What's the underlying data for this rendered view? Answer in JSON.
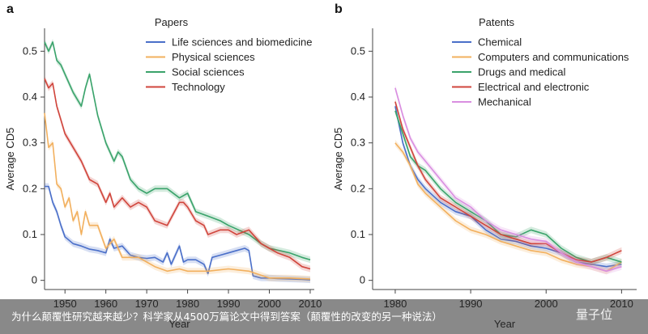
{
  "chart_data": [
    {
      "type": "line",
      "panel": "a",
      "title": "Papers",
      "xlabel": "Year",
      "ylabel": "Average CD5",
      "xlim": [
        1945,
        2011
      ],
      "ylim": [
        -0.02,
        0.55
      ],
      "xticks": [
        1950,
        1960,
        1970,
        1980,
        1990,
        2000,
        2010
      ],
      "yticks": [
        0,
        0.1,
        0.2,
        0.3,
        0.4,
        0.5
      ],
      "legend_position": "top-right",
      "series": [
        {
          "name": "Life sciences and biomedicine",
          "color": "#4a6fc9",
          "x": [
            1945,
            1946,
            1947,
            1948,
            1949,
            1950,
            1952,
            1954,
            1956,
            1958,
            1960,
            1961,
            1962,
            1964,
            1966,
            1968,
            1970,
            1972,
            1974,
            1975,
            1976,
            1978,
            1979,
            1980,
            1982,
            1984,
            1985,
            1986,
            1988,
            1990,
            1992,
            1994,
            1995,
            1996,
            1998,
            2000,
            2002,
            2005,
            2008,
            2010
          ],
          "y": [
            0.205,
            0.205,
            0.17,
            0.15,
            0.12,
            0.095,
            0.08,
            0.075,
            0.068,
            0.065,
            0.06,
            0.09,
            0.07,
            0.075,
            0.055,
            0.05,
            0.048,
            0.05,
            0.04,
            0.06,
            0.035,
            0.075,
            0.04,
            0.045,
            0.045,
            0.035,
            0.015,
            0.05,
            0.055,
            0.06,
            0.065,
            0.07,
            0.065,
            0.01,
            0.005,
            0.005,
            0.004,
            0.003,
            0.002,
            0.001
          ]
        },
        {
          "name": "Physical sciences",
          "color": "#f2b05e",
          "x": [
            1945,
            1946,
            1947,
            1948,
            1949,
            1950,
            1951,
            1952,
            1953,
            1954,
            1955,
            1956,
            1958,
            1960,
            1962,
            1964,
            1966,
            1968,
            1970,
            1972,
            1975,
            1978,
            1980,
            1985,
            1990,
            1995,
            2000,
            2005,
            2010
          ],
          "y": [
            0.365,
            0.29,
            0.3,
            0.21,
            0.2,
            0.16,
            0.18,
            0.13,
            0.15,
            0.1,
            0.15,
            0.12,
            0.12,
            0.07,
            0.09,
            0.05,
            0.05,
            0.05,
            0.04,
            0.03,
            0.02,
            0.025,
            0.02,
            0.02,
            0.025,
            0.02,
            0.005,
            0.005,
            0.003
          ]
        },
        {
          "name": "Social sciences",
          "color": "#3aa36b",
          "x": [
            1945,
            1946,
            1947,
            1948,
            1949,
            1950,
            1952,
            1954,
            1955,
            1956,
            1958,
            1960,
            1962,
            1963,
            1964,
            1966,
            1968,
            1970,
            1972,
            1975,
            1978,
            1980,
            1982,
            1985,
            1988,
            1990,
            1995,
            1998,
            2000,
            2005,
            2008,
            2010
          ],
          "y": [
            0.52,
            0.5,
            0.52,
            0.48,
            0.47,
            0.45,
            0.41,
            0.38,
            0.42,
            0.45,
            0.36,
            0.3,
            0.26,
            0.28,
            0.27,
            0.22,
            0.2,
            0.19,
            0.2,
            0.2,
            0.18,
            0.19,
            0.15,
            0.14,
            0.13,
            0.12,
            0.1,
            0.08,
            0.07,
            0.06,
            0.05,
            0.045
          ]
        },
        {
          "name": "Technology",
          "color": "#d0453c",
          "x": [
            1945,
            1946,
            1947,
            1948,
            1949,
            1950,
            1952,
            1954,
            1956,
            1958,
            1960,
            1961,
            1962,
            1964,
            1966,
            1968,
            1970,
            1972,
            1975,
            1978,
            1979,
            1980,
            1982,
            1984,
            1985,
            1988,
            1990,
            1992,
            1995,
            1998,
            2000,
            2002,
            2005,
            2008,
            2010
          ],
          "y": [
            0.44,
            0.42,
            0.43,
            0.38,
            0.35,
            0.32,
            0.29,
            0.26,
            0.22,
            0.21,
            0.17,
            0.19,
            0.16,
            0.18,
            0.16,
            0.17,
            0.16,
            0.13,
            0.12,
            0.17,
            0.17,
            0.16,
            0.13,
            0.12,
            0.1,
            0.11,
            0.11,
            0.1,
            0.11,
            0.08,
            0.07,
            0.06,
            0.05,
            0.03,
            0.025
          ]
        }
      ]
    },
    {
      "type": "line",
      "panel": "b",
      "title": "Patents",
      "xlabel": "Year",
      "ylabel": "Average CD5",
      "xlim": [
        1977,
        2012
      ],
      "ylim": [
        -0.02,
        0.55
      ],
      "xticks": [
        1980,
        1990,
        2000,
        2010
      ],
      "yticks": [
        0,
        0.1,
        0.2,
        0.3,
        0.4,
        0.5
      ],
      "legend_position": "top-right",
      "series": [
        {
          "name": "Chemical",
          "color": "#4a6fc9",
          "x": [
            1980,
            1981,
            1982,
            1983,
            1984,
            1986,
            1988,
            1990,
            1992,
            1994,
            1996,
            1998,
            2000,
            2002,
            2004,
            2006,
            2008,
            2010
          ],
          "y": [
            0.38,
            0.3,
            0.25,
            0.22,
            0.2,
            0.17,
            0.15,
            0.14,
            0.11,
            0.09,
            0.085,
            0.075,
            0.07,
            0.06,
            0.04,
            0.035,
            0.03,
            0.035
          ]
        },
        {
          "name": "Computers and communications",
          "color": "#f2b05e",
          "x": [
            1980,
            1981,
            1982,
            1983,
            1984,
            1986,
            1988,
            1990,
            1992,
            1994,
            1996,
            1998,
            2000,
            2002,
            2004,
            2006,
            2008,
            2010
          ],
          "y": [
            0.3,
            0.28,
            0.25,
            0.21,
            0.19,
            0.16,
            0.13,
            0.11,
            0.1,
            0.085,
            0.075,
            0.065,
            0.06,
            0.045,
            0.035,
            0.03,
            0.02,
            0.04
          ]
        },
        {
          "name": "Drugs and medical",
          "color": "#3aa36b",
          "x": [
            1980,
            1981,
            1982,
            1983,
            1984,
            1986,
            1988,
            1990,
            1992,
            1994,
            1996,
            1998,
            2000,
            2002,
            2004,
            2006,
            2008,
            2010
          ],
          "y": [
            0.37,
            0.32,
            0.27,
            0.25,
            0.24,
            0.2,
            0.17,
            0.15,
            0.13,
            0.1,
            0.095,
            0.11,
            0.1,
            0.07,
            0.05,
            0.04,
            0.05,
            0.04
          ]
        },
        {
          "name": "Electrical and electronic",
          "color": "#d0453c",
          "x": [
            1980,
            1981,
            1982,
            1983,
            1984,
            1986,
            1988,
            1990,
            1992,
            1994,
            1996,
            1998,
            2000,
            2002,
            2004,
            2006,
            2008,
            2010
          ],
          "y": [
            0.39,
            0.33,
            0.29,
            0.25,
            0.22,
            0.18,
            0.16,
            0.14,
            0.12,
            0.1,
            0.09,
            0.08,
            0.08,
            0.06,
            0.045,
            0.04,
            0.05,
            0.065
          ]
        },
        {
          "name": "Mechanical",
          "color": "#d98ee0",
          "x": [
            1980,
            1981,
            1982,
            1983,
            1984,
            1986,
            1988,
            1990,
            1992,
            1994,
            1996,
            1998,
            2000,
            2002,
            2004,
            2006,
            2008,
            2010
          ],
          "y": [
            0.42,
            0.36,
            0.31,
            0.28,
            0.26,
            0.22,
            0.18,
            0.16,
            0.13,
            0.11,
            0.1,
            0.09,
            0.085,
            0.06,
            0.04,
            0.03,
            0.02,
            0.03
          ]
        }
      ]
    }
  ],
  "caption": "为什么颠覆性研究越来越少？科学家从4500万篇论文中得到答案（颠覆性的改变的另一种说法）",
  "watermark": "量子位"
}
